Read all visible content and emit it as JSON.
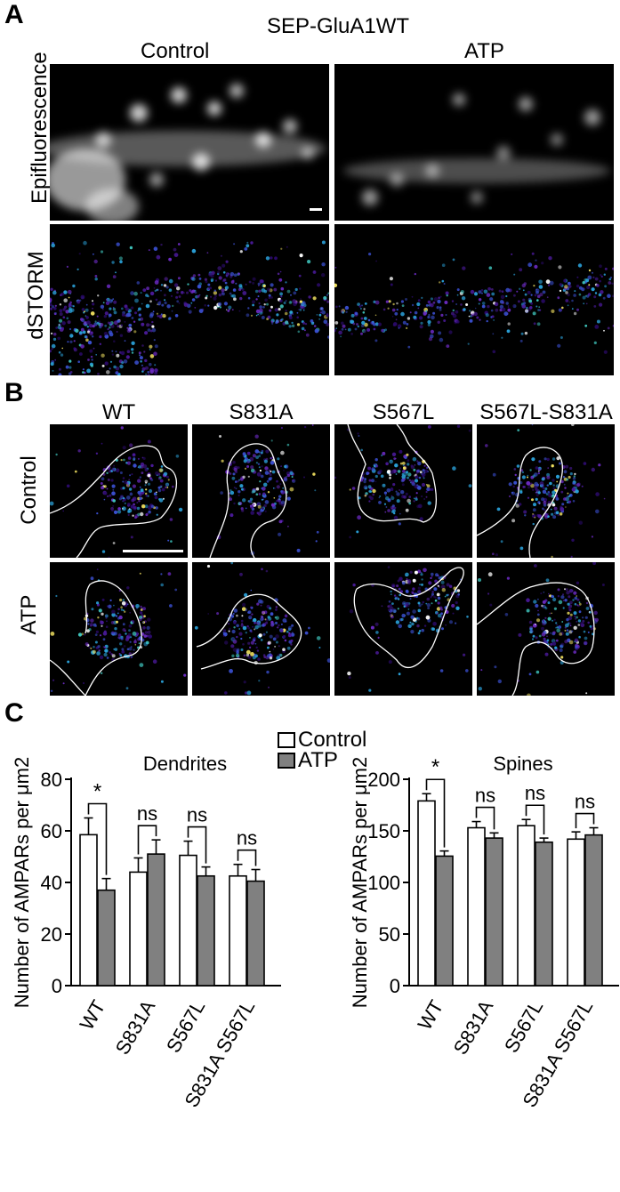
{
  "panel_a": {
    "letter": "A",
    "title": "SEP-GluA1WT",
    "col_labels": [
      "Control",
      "ATP"
    ],
    "row_labels": [
      "Epifluorescence",
      "dSTORM"
    ]
  },
  "panel_b": {
    "letter": "B",
    "col_labels": [
      "WT",
      "S831A",
      "S567L",
      "S567L-S831A"
    ],
    "row_labels": [
      "Control",
      "ATP"
    ]
  },
  "panel_c": {
    "letter": "C",
    "legend": [
      "Control",
      "ATP"
    ]
  },
  "colors": {
    "control_fill": "#ffffff",
    "atp_fill": "#808080",
    "background": "#ffffff",
    "micrograph_bg": "#000000"
  },
  "chart_data": [
    {
      "type": "bar",
      "title": "Dendrites",
      "ylabel": "Number of AMPARs per μm2",
      "ylim": [
        0,
        80
      ],
      "yticks": [
        0,
        20,
        40,
        60,
        80
      ],
      "categories": [
        "WT",
        "S831A",
        "S567L",
        "S831A S567L"
      ],
      "series": [
        {
          "name": "Control",
          "values": [
            58.5,
            44,
            50.5,
            42.5
          ],
          "errors": [
            6.5,
            5.5,
            5.5,
            4.5
          ]
        },
        {
          "name": "ATP",
          "values": [
            37,
            51,
            42.5,
            40.5
          ],
          "errors": [
            4.5,
            5.5,
            3.5,
            4.5
          ]
        }
      ],
      "significance": [
        "*",
        "ns",
        "ns",
        "ns"
      ],
      "legend_position": "top"
    },
    {
      "type": "bar",
      "title": "Spines",
      "ylabel": "Number of AMPARs per μm2",
      "ylim": [
        0,
        200
      ],
      "yticks": [
        0,
        50,
        100,
        150,
        200
      ],
      "categories": [
        "WT",
        "S831A",
        "S567L",
        "S831A S567L"
      ],
      "series": [
        {
          "name": "Control",
          "values": [
            179,
            153,
            155,
            142
          ],
          "errors": [
            7,
            6,
            6,
            7
          ]
        },
        {
          "name": "ATP",
          "values": [
            125.5,
            143,
            139,
            146
          ],
          "errors": [
            5,
            5,
            4,
            7
          ]
        }
      ],
      "significance": [
        "*",
        "ns",
        "ns",
        "ns"
      ]
    }
  ]
}
